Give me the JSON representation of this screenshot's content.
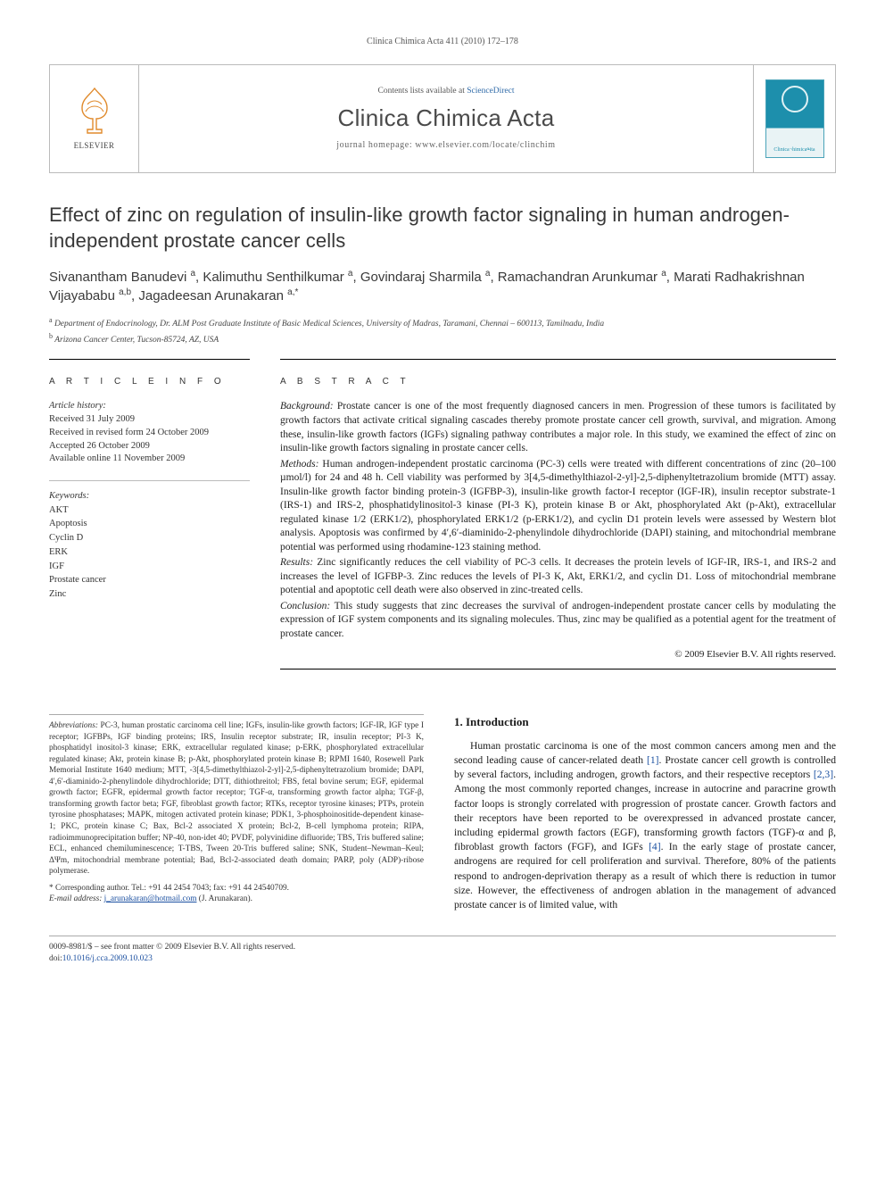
{
  "running_header": "Clinica Chimica Acta 411 (2010) 172–178",
  "masthead": {
    "publisher_label": "ELSEVIER",
    "contents_prefix": "Contents lists available at ",
    "contents_link": "ScienceDirect",
    "journal_name": "Clinica Chimica Acta",
    "homepage_prefix": "journal homepage: ",
    "homepage_url": "www.elsevier.com/locate/clinchim",
    "cover_brand_color": "#1d8fac"
  },
  "title": "Effect of zinc on regulation of insulin-like growth factor signaling in human androgen-independent prostate cancer cells",
  "authors_html": "Sivanantham Banudevi <sup>a</sup>, Kalimuthu Senthilkumar <sup>a</sup>, Govindaraj Sharmila <sup>a</sup>, Ramachandran Arunkumar <sup>a</sup>, Marati Radhakrishnan Vijayababu <sup>a,b</sup>, Jagadeesan Arunakaran <sup>a,*</sup>",
  "affiliations": [
    {
      "mark": "a",
      "text": "Department of Endocrinology, Dr. ALM Post Graduate Institute of Basic Medical Sciences, University of Madras, Taramani, Chennai – 600113, Tamilnadu, India"
    },
    {
      "mark": "b",
      "text": "Arizona Cancer Center, Tucson-85724, AZ, USA"
    }
  ],
  "article_info": {
    "section_label": "A R T I C L E   I N F O",
    "history_label": "Article history:",
    "history": [
      "Received 31 July 2009",
      "Received in revised form 24 October 2009",
      "Accepted 26 October 2009",
      "Available online 11 November 2009"
    ],
    "keywords_label": "Keywords:",
    "keywords": [
      "AKT",
      "Apoptosis",
      "Cyclin D",
      "ERK",
      "IGF",
      "Prostate cancer",
      "Zinc"
    ]
  },
  "abstract": {
    "section_label": "A B S T R A C T",
    "paragraphs": [
      {
        "lead": "Background:",
        "body": "Prostate cancer is one of the most frequently diagnosed cancers in men. Progression of these tumors is facilitated by growth factors that activate critical signaling cascades thereby promote prostate cancer cell growth, survival, and migration. Among these, insulin-like growth factors (IGFs) signaling pathway contributes a major role. In this study, we examined the effect of zinc on insulin-like growth factors signaling in prostate cancer cells."
      },
      {
        "lead": "Methods:",
        "body": "Human androgen-independent prostatic carcinoma (PC-3) cells were treated with different concentrations of zinc (20–100 µmol/l) for 24 and 48 h. Cell viability was performed by 3[4,5-dimethylthiazol-2-yl]-2,5-diphenyltetrazolium bromide (MTT) assay. Insulin-like growth factor binding protein-3 (IGFBP-3), insulin-like growth factor-I receptor (IGF-IR), insulin receptor substrate-1 (IRS-1) and IRS-2, phosphatidylinositol-3 kinase (PI-3 K), protein kinase B or Akt, phosphorylated Akt (p-Akt), extracellular regulated kinase 1/2 (ERK1/2), phosphorylated ERK1/2 (p-ERK1/2), and cyclin D1 protein levels were assessed by Western blot analysis. Apoptosis was confirmed by 4′,6′-diaminido-2-phenylindole dihydrochloride (DAPI) staining, and mitochondrial membrane potential was performed using rhodamine-123 staining method."
      },
      {
        "lead": "Results:",
        "body": "Zinc significantly reduces the cell viability of PC-3 cells. It decreases the protein levels of IGF-IR, IRS-1, and IRS-2 and increases the level of IGFBP-3. Zinc reduces the levels of PI-3 K, Akt, ERK1/2, and cyclin D1. Loss of mitochondrial membrane potential and apoptotic cell death were also observed in zinc-treated cells."
      },
      {
        "lead": "Conclusion:",
        "body": "This study suggests that zinc decreases the survival of androgen-independent prostate cancer cells by modulating the expression of IGF system components and its signaling molecules. Thus, zinc may be qualified as a potential agent for the treatment of prostate cancer."
      }
    ],
    "copyright": "© 2009 Elsevier B.V. All rights reserved."
  },
  "abbreviations": {
    "lead": "Abbreviations:",
    "body": "PC-3, human prostatic carcinoma cell line; IGFs, insulin-like growth factors; IGF-IR, IGF type I receptor; IGFBPs, IGF binding proteins; IRS, Insulin receptor substrate; IR, insulin receptor; PI-3 K, phosphatidyl inositol-3 kinase; ERK, extracellular regulated kinase; p-ERK, phosphorylated extracellular regulated kinase; Akt, protein kinase B; p-Akt, phosphorylated protein kinase B; RPMI 1640, Rosewell Park Memorial Institute 1640 medium; MTT, -3[4,5-dimethylthiazol-2-yl]-2,5-diphenyltetrazolium bromide; DAPI, 4′,6′-diaminido-2-phenylindole dihydrochloride; DTT, dithiothreitol; FBS, fetal bovine serum; EGF, epidermal growth factor; EGFR, epidermal growth factor receptor; TGF-α, transforming growth factor alpha; TGF-β, transforming growth factor beta; FGF, fibroblast growth factor; RTKs, receptor tyrosine kinases; PTPs, protein tyrosine phosphatases; MAPK, mitogen activated protein kinase; PDK1, 3-phosphoinositide-dependent kinase-1; PKC, protein kinase C; Bax, Bcl-2 associated X protein; Bcl-2, B-cell lymphoma protein; RIPA, radioimmunoprecipitation buffer; NP-40, non-idet 40; PVDF, polyvinidine difluoride; TBS, Tris buffered saline; ECL, enhanced chemiluminescence; T-TBS, Tween 20-Tris buffered saline; SNK, Student–Newman–Keul; ΔΨm, mitochondrial membrane potential; Bad, Bcl-2-associated death domain; PARP, poly (ADP)-ribose polymerase."
  },
  "correspondence": {
    "star": "*",
    "line": "Corresponding author. Tel.: +91 44 2454 7043; fax: +91 44 24540709.",
    "email_label": "E-mail address:",
    "email": "j_arunakaran@hotmail.com",
    "email_suffix": "(J. Arunakaran)."
  },
  "introduction": {
    "heading": "1. Introduction",
    "paragraph": "Human prostatic carcinoma is one of the most common cancers among men and the second leading cause of cancer-related death [1]. Prostate cancer cell growth is controlled by several factors, including androgen, growth factors, and their respective receptors [2,3]. Among the most commonly reported changes, increase in autocrine and paracrine growth factor loops is strongly correlated with progression of prostate cancer. Growth factors and their receptors have been reported to be overexpressed in advanced prostate cancer, including epidermal growth factors (EGF), transforming growth factors (TGF)-α and β, fibroblast growth factors (FGF), and IGFs [4]. In the early stage of prostate cancer, androgens are required for cell proliferation and survival. Therefore, 80% of the patients respond to androgen-deprivation therapy as a result of which there is reduction in tumor size. However, the effectiveness of androgen ablation in the management of advanced prostate cancer is of limited value, with",
    "ref_links": [
      "[1]",
      "[2,3]",
      "[4]"
    ]
  },
  "footer": {
    "left_line1": "0009-8981/$ – see front matter © 2009 Elsevier B.V. All rights reserved.",
    "doi_prefix": "doi:",
    "doi": "10.1016/j.cca.2009.10.023"
  },
  "colors": {
    "link": "#1a4fa0",
    "text": "#1a1a1a",
    "muted": "#555555",
    "rule": "#000000",
    "light_rule": "#bbbbbb"
  }
}
